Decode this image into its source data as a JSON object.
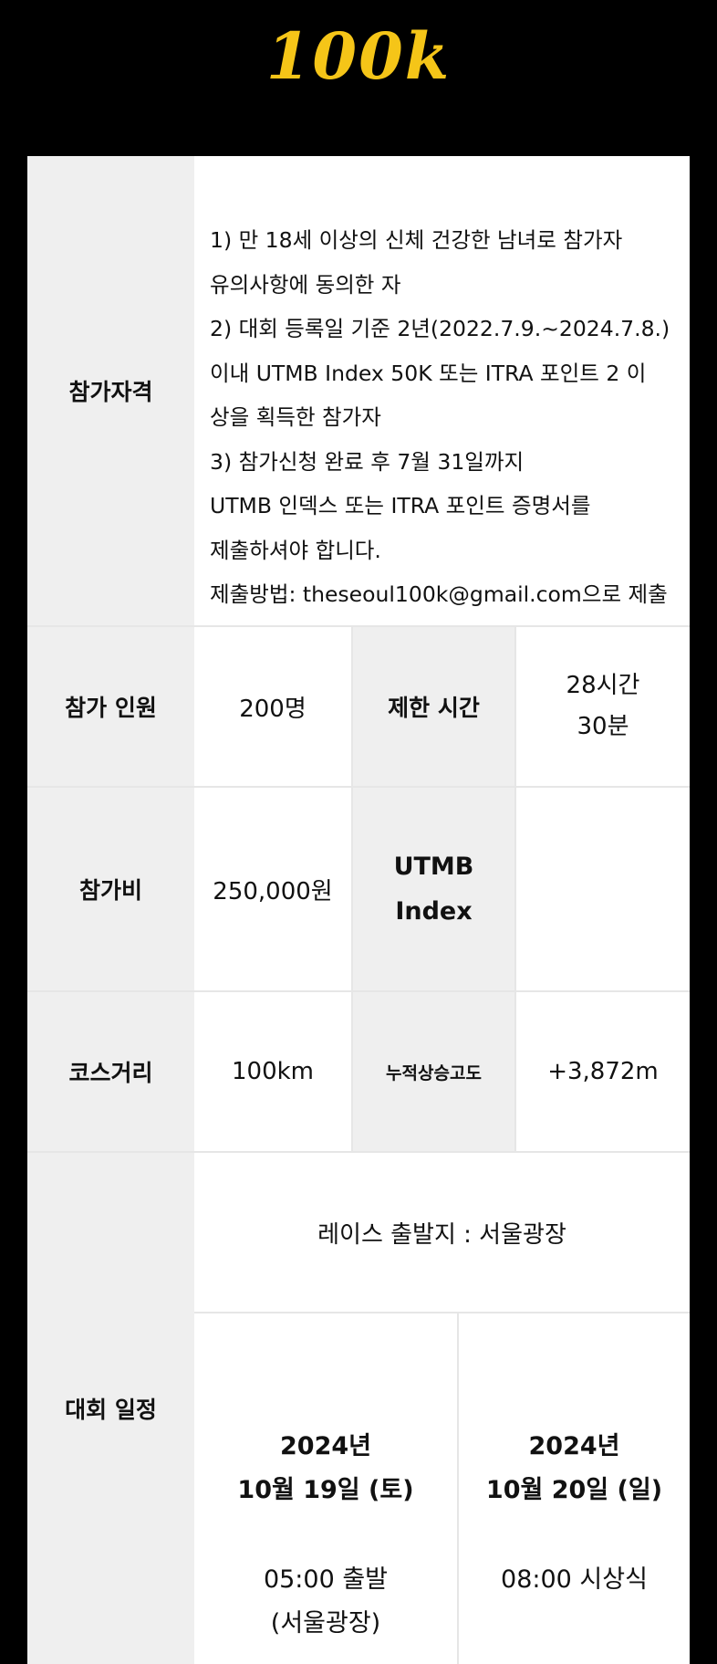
{
  "header": {
    "logo_text": "100k"
  },
  "qualification": {
    "label": "참가자격",
    "lines": [
      "1) 만 18세 이상의 신체 건강한 남녀로 참가자",
      "유의사항에 동의한 자",
      " 2) 대회 등록일 기준 2년(2022.7.9.~2024.7.8.)",
      "이내 UTMB Index 50K 또는 ITRA 포인트 2 이",
      "상을 획득한 참가자",
      "3) 참가신청 완료 후 7월 31일까지",
      "UTMB 인덱스 또는 ITRA 포인트 증명서를",
      "제출하셔야 합니다.",
      "제출방법: theseoul100k@gmail.com으로 제출"
    ]
  },
  "participants": {
    "label": "참가 인원",
    "value": "200명"
  },
  "time_limit": {
    "label": "제한 시간",
    "line1": "28시간",
    "line2": "30분"
  },
  "fee": {
    "label": "참가비",
    "value": "250,000원"
  },
  "utmb": {
    "line1": "UTMB",
    "line2": "Index",
    "value": ""
  },
  "course": {
    "label": "코스거리",
    "value": "100km"
  },
  "elevation": {
    "label": "누적상승고도",
    "value": "+3,872m"
  },
  "schedule": {
    "label": "대회 일정",
    "start_location": "레이스 출발지 : 서울광장",
    "day1": {
      "year": "2024년",
      "date": "10월 19일 (토)",
      "event": "05:00 출발",
      "place": "(서울광장)"
    },
    "day2": {
      "year": "2024년",
      "date": "10월 20일 (일)",
      "event": "08:00 시상식"
    }
  },
  "colors": {
    "logo": "#f5c518",
    "label_bg": "#efefef",
    "page_bg": "#000000"
  }
}
